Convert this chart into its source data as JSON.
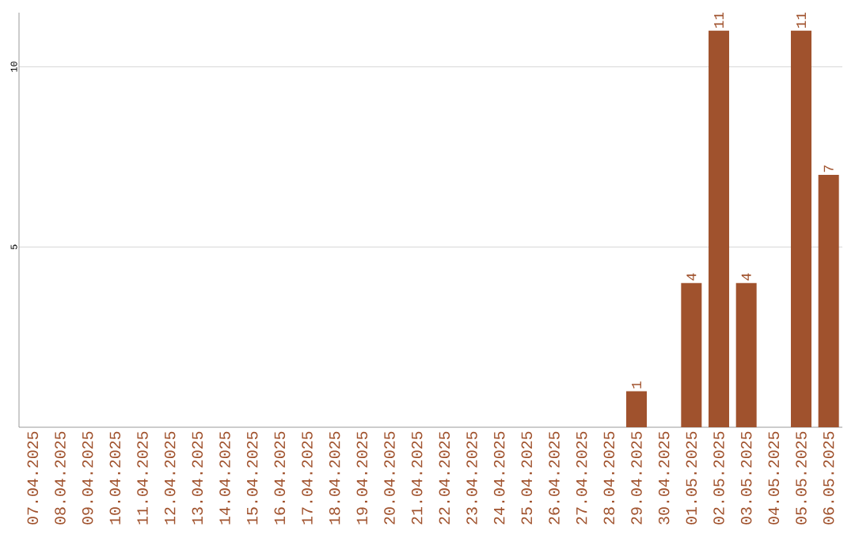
{
  "chart_data": {
    "type": "bar",
    "categories": [
      "07.04.2025",
      "08.04.2025",
      "09.04.2025",
      "10.04.2025",
      "11.04.2025",
      "12.04.2025",
      "13.04.2025",
      "14.04.2025",
      "15.04.2025",
      "16.04.2025",
      "17.04.2025",
      "18.04.2025",
      "19.04.2025",
      "20.04.2025",
      "21.04.2025",
      "22.04.2025",
      "23.04.2025",
      "24.04.2025",
      "25.04.2025",
      "26.04.2025",
      "27.04.2025",
      "28.04.2025",
      "29.04.2025",
      "30.04.2025",
      "01.05.2025",
      "02.05.2025",
      "03.05.2025",
      "04.05.2025",
      "05.05.2025",
      "06.05.2025"
    ],
    "values": [
      0,
      0,
      0,
      0,
      0,
      0,
      0,
      0,
      0,
      0,
      0,
      0,
      0,
      0,
      0,
      0,
      0,
      0,
      0,
      0,
      0,
      0,
      1,
      0,
      4,
      11,
      4,
      0,
      11,
      7
    ],
    "value_labels": [
      null,
      null,
      null,
      null,
      null,
      null,
      null,
      null,
      null,
      null,
      null,
      null,
      null,
      null,
      null,
      null,
      null,
      null,
      null,
      null,
      null,
      null,
      "1",
      null,
      "4",
      "11",
      "4",
      null,
      "11",
      "7"
    ],
    "color": "#a0522d",
    "ylim": [
      0,
      11.5
    ],
    "yticks": [
      5,
      10
    ],
    "grid": "y"
  }
}
